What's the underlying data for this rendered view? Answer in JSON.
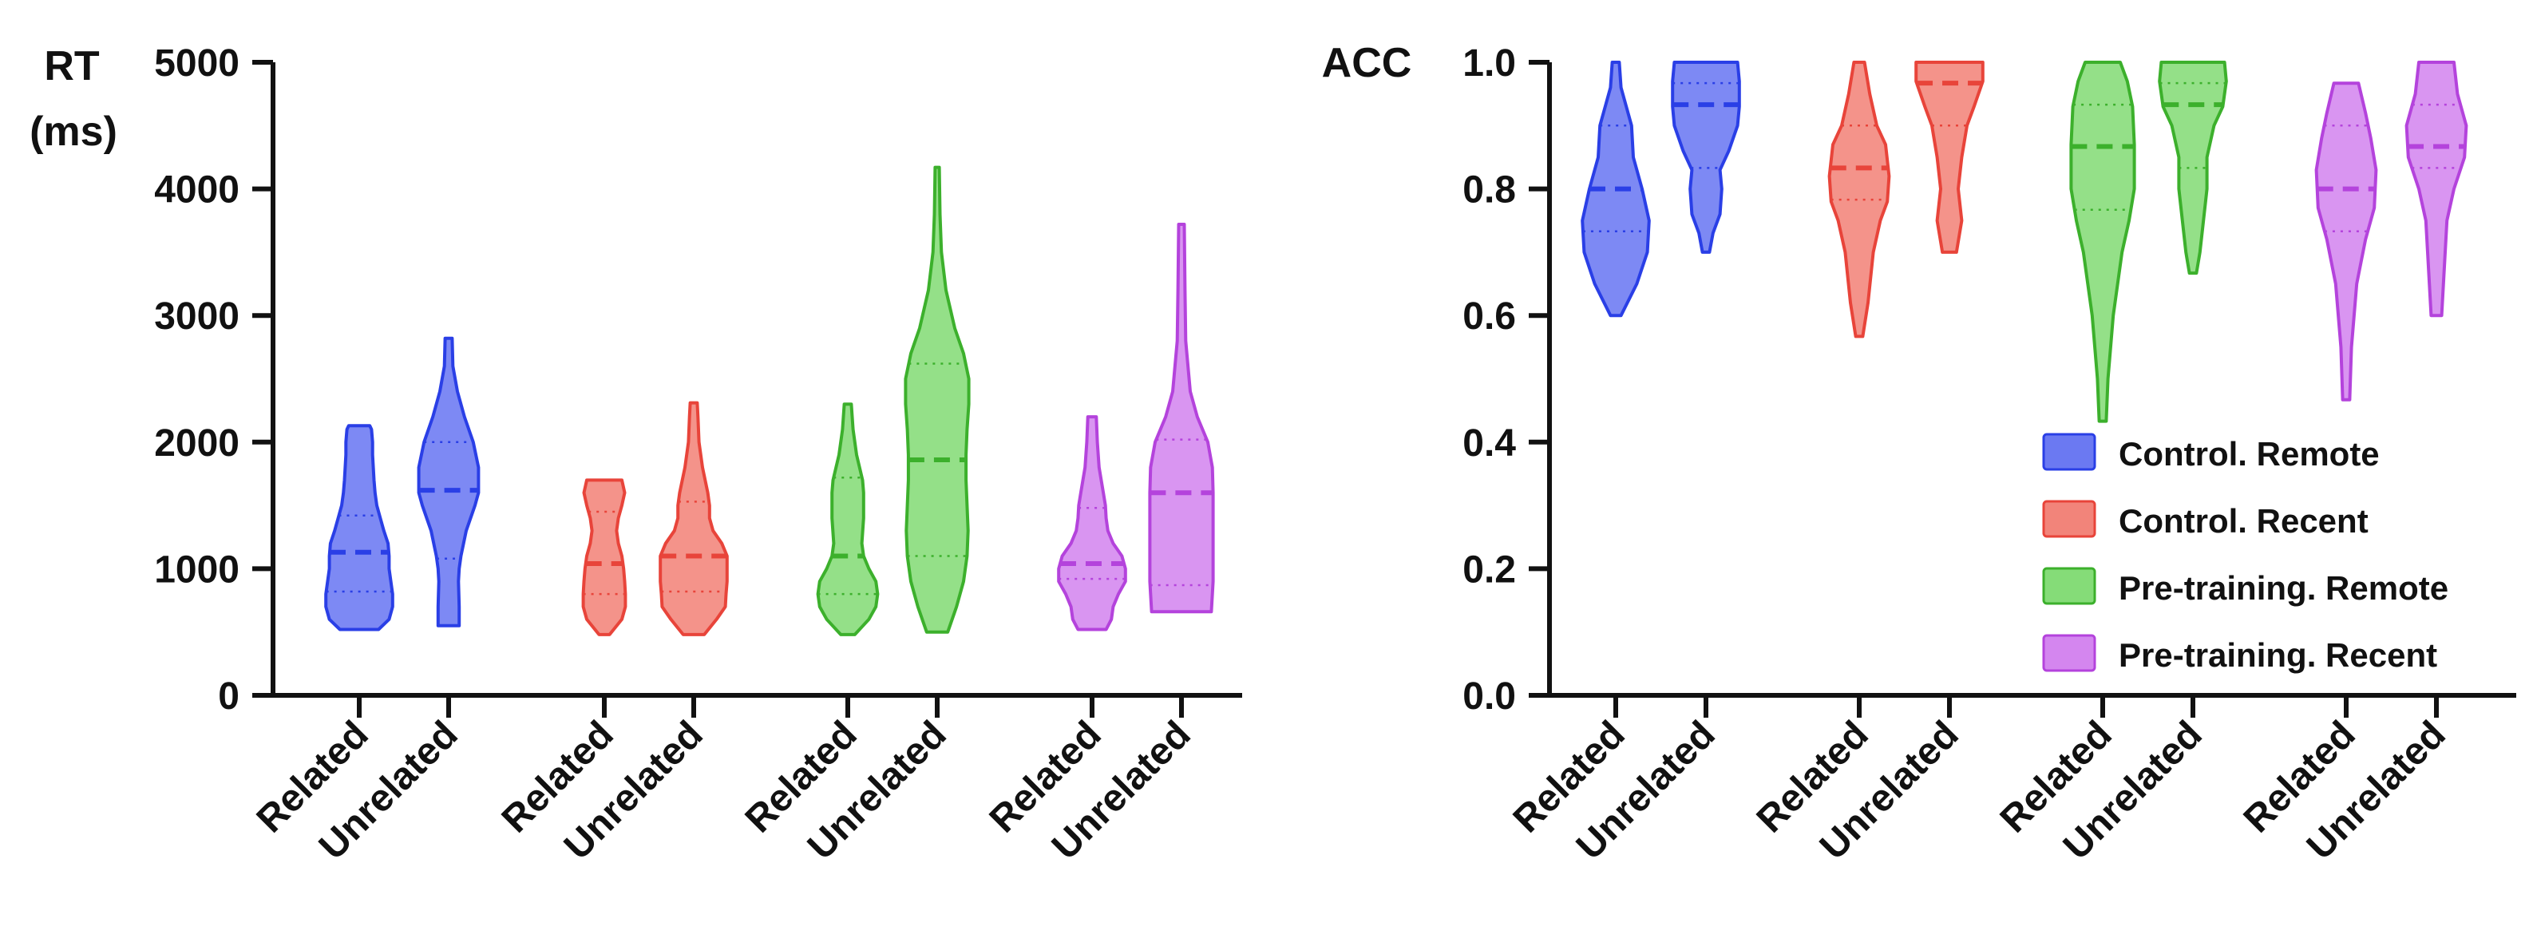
{
  "chart_data": [
    {
      "type": "violin",
      "id": "rt",
      "ylabel_lines": [
        "RT",
        "(ms)"
      ],
      "ylim": [
        0,
        5000
      ],
      "yticks": [
        0,
        1000,
        2000,
        3000,
        4000,
        5000
      ],
      "ytick_labels": [
        "0",
        "1000",
        "2000",
        "3000",
        "4000",
        "5000"
      ],
      "categories": [
        "Related",
        "Unrelated",
        "Related",
        "Unrelated",
        "Related",
        "Unrelated",
        "Related",
        "Unrelated"
      ],
      "violins": [
        {
          "group": "Control. Remote",
          "condition": "Related",
          "min": 520,
          "max": 2130,
          "q1": 820,
          "median": 1130,
          "q3": 1420,
          "profile": [
            [
              520,
              0.55
            ],
            [
              600,
              0.85
            ],
            [
              700,
              0.95
            ],
            [
              800,
              0.95
            ],
            [
              900,
              0.9
            ],
            [
              1000,
              0.85
            ],
            [
              1100,
              0.85
            ],
            [
              1200,
              0.82
            ],
            [
              1300,
              0.7
            ],
            [
              1400,
              0.6
            ],
            [
              1500,
              0.5
            ],
            [
              1600,
              0.45
            ],
            [
              1700,
              0.42
            ],
            [
              1800,
              0.4
            ],
            [
              1900,
              0.38
            ],
            [
              2000,
              0.38
            ],
            [
              2100,
              0.35
            ],
            [
              2130,
              0.3
            ]
          ]
        },
        {
          "group": "Control. Remote",
          "condition": "Unrelated",
          "min": 550,
          "max": 2820,
          "q1": 1080,
          "median": 1620,
          "q3": 2000,
          "profile": [
            [
              550,
              0.3
            ],
            [
              700,
              0.3
            ],
            [
              900,
              0.28
            ],
            [
              1000,
              0.3
            ],
            [
              1100,
              0.35
            ],
            [
              1300,
              0.5
            ],
            [
              1500,
              0.75
            ],
            [
              1600,
              0.85
            ],
            [
              1800,
              0.85
            ],
            [
              2000,
              0.7
            ],
            [
              2200,
              0.45
            ],
            [
              2400,
              0.25
            ],
            [
              2600,
              0.12
            ],
            [
              2820,
              0.1
            ]
          ]
        },
        {
          "group": "Control. Recent",
          "condition": "Related",
          "min": 480,
          "max": 1700,
          "q1": 800,
          "median": 1040,
          "q3": 1450,
          "profile": [
            [
              480,
              0.15
            ],
            [
              600,
              0.5
            ],
            [
              700,
              0.6
            ],
            [
              800,
              0.6
            ],
            [
              900,
              0.58
            ],
            [
              1000,
              0.55
            ],
            [
              1100,
              0.5
            ],
            [
              1200,
              0.4
            ],
            [
              1300,
              0.35
            ],
            [
              1400,
              0.4
            ],
            [
              1500,
              0.5
            ],
            [
              1600,
              0.58
            ],
            [
              1700,
              0.5
            ]
          ]
        },
        {
          "group": "Control. Recent",
          "condition": "Unrelated",
          "min": 480,
          "max": 2310,
          "q1": 820,
          "median": 1100,
          "q3": 1530,
          "profile": [
            [
              480,
              0.3
            ],
            [
              600,
              0.65
            ],
            [
              700,
              0.9
            ],
            [
              800,
              0.92
            ],
            [
              900,
              0.95
            ],
            [
              1000,
              0.95
            ],
            [
              1100,
              0.95
            ],
            [
              1200,
              0.8
            ],
            [
              1300,
              0.55
            ],
            [
              1400,
              0.45
            ],
            [
              1500,
              0.45
            ],
            [
              1600,
              0.4
            ],
            [
              1800,
              0.25
            ],
            [
              2000,
              0.15
            ],
            [
              2200,
              0.12
            ],
            [
              2310,
              0.1
            ]
          ]
        },
        {
          "group": "Pre-training. Remote",
          "condition": "Related",
          "min": 480,
          "max": 2300,
          "q1": 800,
          "median": 1100,
          "q3": 1720,
          "profile": [
            [
              480,
              0.2
            ],
            [
              600,
              0.6
            ],
            [
              700,
              0.8
            ],
            [
              800,
              0.85
            ],
            [
              900,
              0.8
            ],
            [
              1000,
              0.6
            ],
            [
              1100,
              0.45
            ],
            [
              1200,
              0.4
            ],
            [
              1400,
              0.45
            ],
            [
              1600,
              0.45
            ],
            [
              1700,
              0.42
            ],
            [
              1900,
              0.25
            ],
            [
              2100,
              0.15
            ],
            [
              2300,
              0.1
            ]
          ]
        },
        {
          "group": "Pre-training. Remote",
          "condition": "Unrelated",
          "min": 500,
          "max": 4170,
          "q1": 1100,
          "median": 1860,
          "q3": 2620,
          "profile": [
            [
              500,
              0.3
            ],
            [
              700,
              0.55
            ],
            [
              900,
              0.75
            ],
            [
              1100,
              0.85
            ],
            [
              1300,
              0.88
            ],
            [
              1500,
              0.85
            ],
            [
              1700,
              0.82
            ],
            [
              1900,
              0.82
            ],
            [
              2100,
              0.85
            ],
            [
              2300,
              0.9
            ],
            [
              2500,
              0.9
            ],
            [
              2700,
              0.75
            ],
            [
              2900,
              0.5
            ],
            [
              3200,
              0.25
            ],
            [
              3500,
              0.12
            ],
            [
              3800,
              0.08
            ],
            [
              4170,
              0.06
            ]
          ]
        },
        {
          "group": "Pre-training. Recent",
          "condition": "Related",
          "min": 520,
          "max": 2200,
          "q1": 920,
          "median": 1040,
          "q3": 1480,
          "profile": [
            [
              520,
              0.4
            ],
            [
              600,
              0.55
            ],
            [
              700,
              0.6
            ],
            [
              800,
              0.75
            ],
            [
              900,
              0.95
            ],
            [
              1000,
              0.95
            ],
            [
              1100,
              0.85
            ],
            [
              1200,
              0.6
            ],
            [
              1300,
              0.45
            ],
            [
              1400,
              0.4
            ],
            [
              1500,
              0.38
            ],
            [
              1600,
              0.32
            ],
            [
              1800,
              0.2
            ],
            [
              2000,
              0.15
            ],
            [
              2200,
              0.12
            ]
          ]
        },
        {
          "group": "Pre-training. Recent",
          "condition": "Unrelated",
          "min": 660,
          "max": 3720,
          "q1": 870,
          "median": 1600,
          "q3": 2020,
          "profile": [
            [
              660,
              0.85
            ],
            [
              800,
              0.88
            ],
            [
              900,
              0.9
            ],
            [
              1000,
              0.9
            ],
            [
              1200,
              0.9
            ],
            [
              1400,
              0.9
            ],
            [
              1600,
              0.9
            ],
            [
              1800,
              0.88
            ],
            [
              2000,
              0.75
            ],
            [
              2200,
              0.45
            ],
            [
              2400,
              0.25
            ],
            [
              2800,
              0.12
            ],
            [
              3200,
              0.1
            ],
            [
              3720,
              0.08
            ]
          ]
        }
      ]
    },
    {
      "type": "violin",
      "id": "acc",
      "ylabel_lines": [
        "ACC"
      ],
      "ylim": [
        0,
        1
      ],
      "yticks": [
        0,
        0.2,
        0.4,
        0.6,
        0.8,
        1.0
      ],
      "ytick_labels": [
        "0.0",
        "0.2",
        "0.4",
        "0.6",
        "0.8",
        "1.0"
      ],
      "categories": [
        "Related",
        "Unrelated",
        "Related",
        "Unrelated",
        "Related",
        "Unrelated",
        "Related",
        "Unrelated"
      ],
      "violins": [
        {
          "group": "Control. Remote",
          "condition": "Related",
          "min": 0.6,
          "max": 1.0,
          "q1": 0.733,
          "median": 0.8,
          "q3": 0.9,
          "profile": [
            [
              0.6,
              0.15
            ],
            [
              0.65,
              0.6
            ],
            [
              0.7,
              0.9
            ],
            [
              0.75,
              0.95
            ],
            [
              0.8,
              0.75
            ],
            [
              0.85,
              0.5
            ],
            [
              0.9,
              0.45
            ],
            [
              0.93,
              0.3
            ],
            [
              0.96,
              0.15
            ],
            [
              1.0,
              0.1
            ]
          ]
        },
        {
          "group": "Control. Remote",
          "condition": "Unrelated",
          "min": 0.7,
          "max": 1.0,
          "q1": 0.833,
          "median": 0.933,
          "q3": 0.967,
          "profile": [
            [
              0.7,
              0.1
            ],
            [
              0.73,
              0.2
            ],
            [
              0.76,
              0.4
            ],
            [
              0.8,
              0.45
            ],
            [
              0.83,
              0.4
            ],
            [
              0.86,
              0.65
            ],
            [
              0.9,
              0.9
            ],
            [
              0.93,
              0.95
            ],
            [
              0.97,
              0.95
            ],
            [
              1.0,
              0.9
            ]
          ]
        },
        {
          "group": "Control. Recent",
          "condition": "Related",
          "min": 0.567,
          "max": 1.0,
          "q1": 0.783,
          "median": 0.833,
          "q3": 0.9,
          "profile": [
            [
              0.567,
              0.1
            ],
            [
              0.62,
              0.25
            ],
            [
              0.7,
              0.4
            ],
            [
              0.75,
              0.6
            ],
            [
              0.78,
              0.8
            ],
            [
              0.82,
              0.85
            ],
            [
              0.87,
              0.75
            ],
            [
              0.9,
              0.5
            ],
            [
              0.95,
              0.3
            ],
            [
              1.0,
              0.15
            ]
          ]
        },
        {
          "group": "Control. Recent",
          "condition": "Unrelated",
          "min": 0.7,
          "max": 1.0,
          "q1": 0.9,
          "median": 0.967,
          "q3": 1.0,
          "profile": [
            [
              0.7,
              0.2
            ],
            [
              0.75,
              0.35
            ],
            [
              0.8,
              0.25
            ],
            [
              0.85,
              0.35
            ],
            [
              0.9,
              0.5
            ],
            [
              0.93,
              0.7
            ],
            [
              0.97,
              0.95
            ],
            [
              1.0,
              0.95
            ]
          ]
        },
        {
          "group": "Pre-training. Remote",
          "condition": "Related",
          "min": 0.433,
          "max": 1.0,
          "q1": 0.767,
          "median": 0.867,
          "q3": 0.933,
          "profile": [
            [
              0.433,
              0.1
            ],
            [
              0.5,
              0.15
            ],
            [
              0.6,
              0.3
            ],
            [
              0.7,
              0.55
            ],
            [
              0.75,
              0.75
            ],
            [
              0.8,
              0.9
            ],
            [
              0.87,
              0.9
            ],
            [
              0.93,
              0.85
            ],
            [
              0.97,
              0.7
            ],
            [
              1.0,
              0.5
            ]
          ]
        },
        {
          "group": "Pre-training. Remote",
          "condition": "Unrelated",
          "min": 0.667,
          "max": 1.0,
          "q1": 0.833,
          "median": 0.933,
          "q3": 0.967,
          "profile": [
            [
              0.667,
              0.1
            ],
            [
              0.7,
              0.2
            ],
            [
              0.75,
              0.3
            ],
            [
              0.8,
              0.4
            ],
            [
              0.85,
              0.4
            ],
            [
              0.9,
              0.6
            ],
            [
              0.93,
              0.85
            ],
            [
              0.97,
              0.95
            ],
            [
              1.0,
              0.9
            ]
          ]
        },
        {
          "group": "Pre-training. Recent",
          "condition": "Related",
          "min": 0.467,
          "max": 0.967,
          "q1": 0.733,
          "median": 0.8,
          "q3": 0.9,
          "profile": [
            [
              0.467,
              0.1
            ],
            [
              0.55,
              0.15
            ],
            [
              0.65,
              0.3
            ],
            [
              0.72,
              0.55
            ],
            [
              0.77,
              0.8
            ],
            [
              0.83,
              0.85
            ],
            [
              0.88,
              0.7
            ],
            [
              0.92,
              0.55
            ],
            [
              0.967,
              0.35
            ]
          ]
        },
        {
          "group": "Pre-training. Recent",
          "condition": "Unrelated",
          "min": 0.6,
          "max": 1.0,
          "q1": 0.833,
          "median": 0.867,
          "q3": 0.933,
          "profile": [
            [
              0.6,
              0.15
            ],
            [
              0.65,
              0.2
            ],
            [
              0.7,
              0.25
            ],
            [
              0.75,
              0.3
            ],
            [
              0.8,
              0.5
            ],
            [
              0.85,
              0.8
            ],
            [
              0.9,
              0.85
            ],
            [
              0.95,
              0.6
            ],
            [
              1.0,
              0.5
            ]
          ]
        }
      ]
    }
  ],
  "legend": {
    "placement": "bottom-right of ACC panel",
    "entries": [
      {
        "label": "Control. Remote",
        "fill": "#6b79f2",
        "stroke": "#2a3fe6"
      },
      {
        "label": "Control. Recent",
        "fill": "#f2847a",
        "stroke": "#e8443a"
      },
      {
        "label": "Pre-training. Remote",
        "fill": "#85dc78",
        "stroke": "#3cb02c"
      },
      {
        "label": "Pre-training. Recent",
        "fill": "#d486ef",
        "stroke": "#b443dc"
      }
    ]
  }
}
